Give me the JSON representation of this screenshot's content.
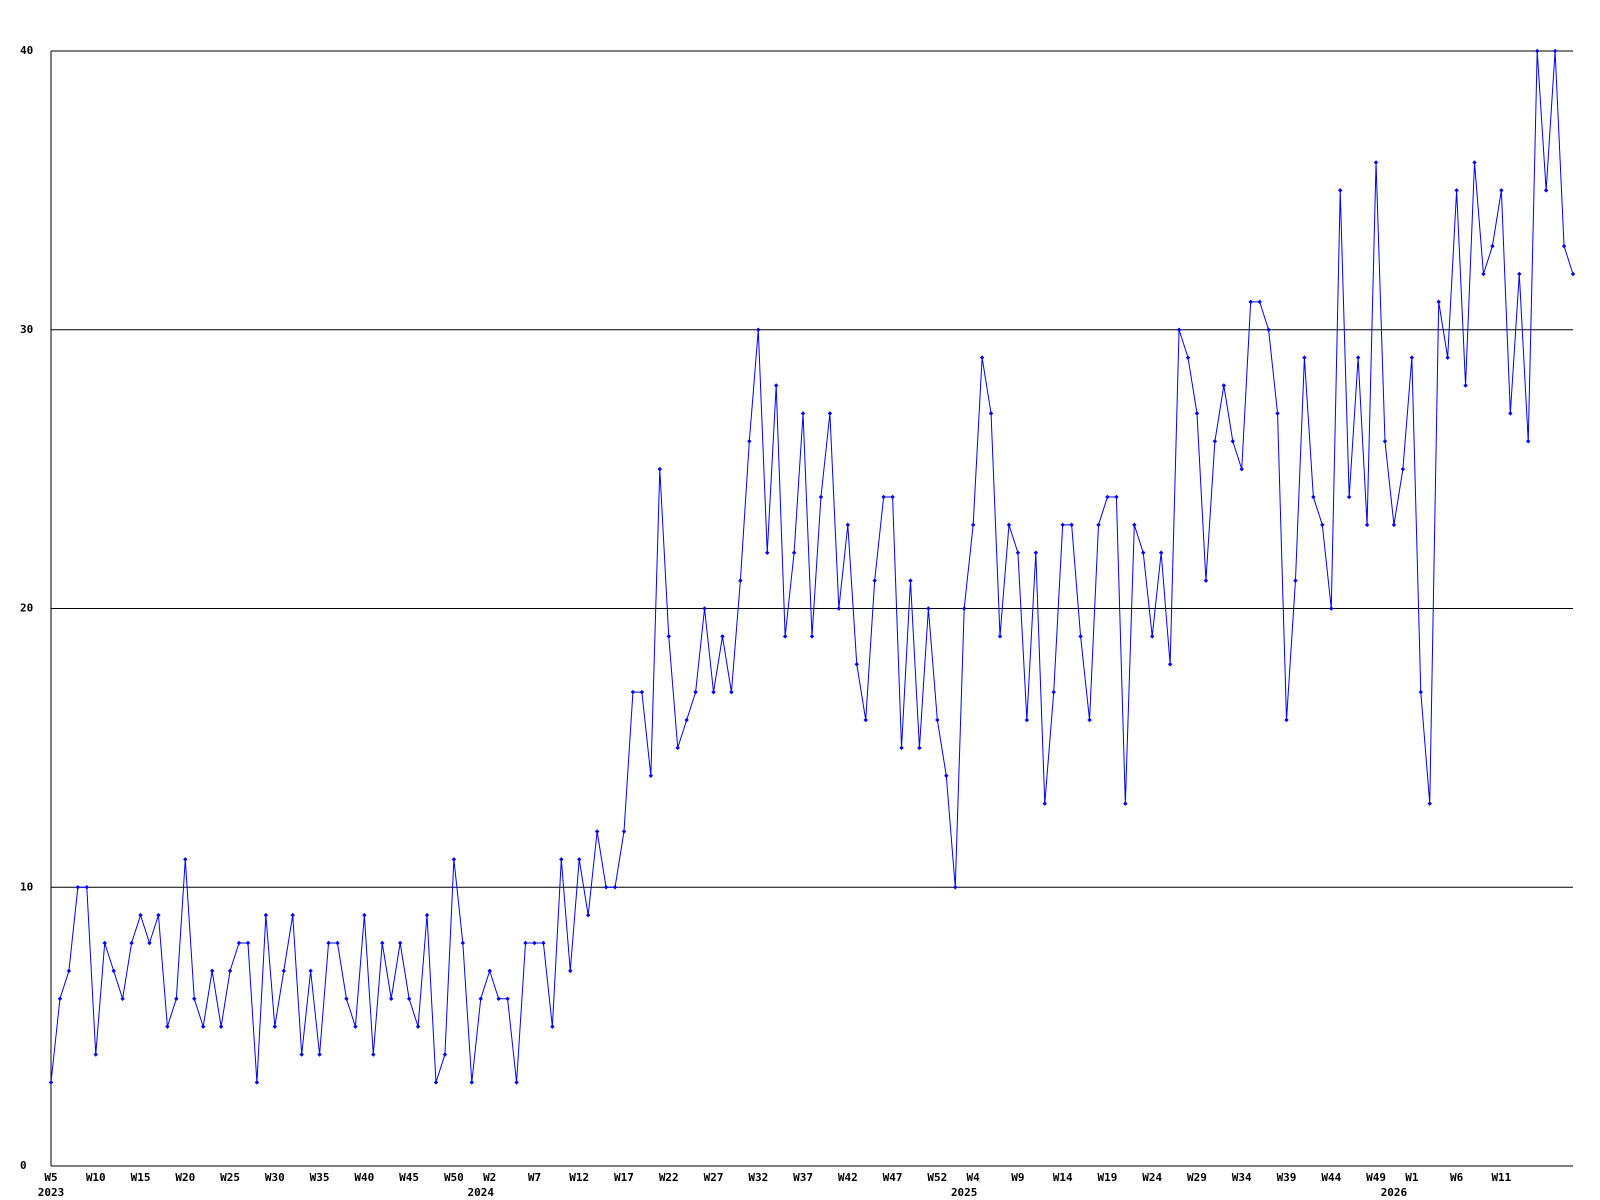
{
  "chart_data": {
    "type": "line",
    "categories": [
      "W5",
      null,
      null,
      null,
      null,
      "W10",
      null,
      null,
      null,
      null,
      "W15",
      null,
      null,
      null,
      null,
      "W20",
      null,
      null,
      null,
      null,
      "W25",
      null,
      null,
      null,
      null,
      "W30",
      null,
      null,
      null,
      null,
      "W35",
      null,
      null,
      null,
      null,
      "W40",
      null,
      null,
      null,
      null,
      "W45",
      null,
      null,
      null,
      null,
      "W50",
      null,
      null,
      null,
      "W2",
      null,
      null,
      null,
      null,
      "W7",
      null,
      null,
      null,
      null,
      "W12",
      null,
      null,
      null,
      null,
      "W17",
      null,
      null,
      null,
      null,
      "W22",
      null,
      null,
      null,
      null,
      "W27",
      null,
      null,
      null,
      null,
      "W32",
      null,
      null,
      null,
      null,
      "W37",
      null,
      null,
      null,
      null,
      "W42",
      null,
      null,
      null,
      null,
      "W47",
      null,
      null,
      null,
      null,
      "W52",
      null,
      null,
      null,
      "W4",
      null,
      null,
      null,
      null,
      "W9",
      null,
      null,
      null,
      null,
      "W14",
      null,
      null,
      null,
      null,
      "W19",
      null,
      null,
      null,
      null,
      "W24",
      null,
      null,
      null,
      null,
      "W29",
      null,
      null,
      null,
      null,
      "W34",
      null,
      null,
      null,
      null,
      "W39",
      null,
      null,
      null,
      null,
      "W44",
      null,
      null,
      null,
      null,
      "W49",
      null,
      null,
      null,
      "W1",
      null,
      null,
      null,
      null,
      "W6",
      null,
      null,
      null,
      null,
      "W11",
      null,
      null,
      null,
      null,
      null,
      null,
      null,
      null
    ],
    "years": [
      "2023",
      null,
      null,
      null,
      null,
      null,
      null,
      null,
      null,
      null,
      null,
      null,
      null,
      null,
      null,
      null,
      null,
      null,
      null,
      null,
      null,
      null,
      null,
      null,
      null,
      null,
      null,
      null,
      null,
      null,
      null,
      null,
      null,
      null,
      null,
      null,
      null,
      null,
      null,
      null,
      null,
      null,
      null,
      null,
      null,
      null,
      null,
      null,
      "2024",
      null,
      null,
      null,
      null,
      null,
      null,
      null,
      null,
      null,
      null,
      null,
      null,
      null,
      null,
      null,
      null,
      null,
      null,
      null,
      null,
      null,
      null,
      null,
      null,
      null,
      null,
      null,
      null,
      null,
      null,
      null,
      null,
      null,
      null,
      null,
      null,
      null,
      null,
      null,
      null,
      null,
      null,
      null,
      null,
      null,
      null,
      null,
      null,
      null,
      null,
      null,
      null,
      null,
      "2025",
      null,
      null,
      null,
      null,
      null,
      null,
      null,
      null,
      null,
      null,
      null,
      null,
      null,
      null,
      null,
      null,
      null,
      null,
      null,
      null,
      null,
      null,
      null,
      null,
      null,
      null,
      null,
      null,
      null,
      null,
      null,
      null,
      null,
      null,
      null,
      null,
      null,
      null,
      null,
      null,
      null,
      null,
      null,
      null,
      null,
      null,
      null,
      "2026",
      null,
      null,
      null,
      null,
      null,
      null,
      null,
      null,
      null,
      null,
      null,
      null,
      null,
      null,
      null,
      null,
      null,
      null
    ],
    "values": [
      3,
      6,
      7,
      10,
      10,
      4,
      8,
      7,
      6,
      8,
      9,
      8,
      9,
      5,
      6,
      11,
      6,
      5,
      7,
      5,
      7,
      8,
      8,
      3,
      9,
      5,
      7,
      9,
      4,
      7,
      4,
      8,
      8,
      6,
      5,
      9,
      4,
      8,
      6,
      8,
      6,
      5,
      9,
      3,
      4,
      11,
      8,
      3,
      6,
      7,
      6,
      6,
      3,
      8,
      8,
      8,
      5,
      11,
      7,
      11,
      9,
      12,
      10,
      10,
      12,
      17,
      17,
      14,
      25,
      19,
      15,
      16,
      17,
      20,
      17,
      19,
      17,
      21,
      26,
      30,
      22,
      28,
      19,
      22,
      27,
      19,
      24,
      27,
      20,
      23,
      18,
      16,
      21,
      24,
      24,
      15,
      21,
      15,
      20,
      16,
      14,
      10,
      20,
      23,
      29,
      27,
      19,
      23,
      22,
      16,
      22,
      13,
      17,
      23,
      23,
      19,
      16,
      23,
      24,
      24,
      13,
      23,
      22,
      19,
      22,
      18,
      30,
      29,
      27,
      21,
      26,
      28,
      26,
      25,
      31,
      31,
      30,
      27,
      16,
      21,
      29,
      24,
      23,
      20,
      35,
      24,
      29,
      23,
      36,
      26,
      23,
      25,
      29,
      17,
      13,
      31,
      29,
      35,
      28,
      36,
      32,
      33,
      35,
      27,
      32,
      26,
      40,
      35,
      40,
      33,
      32
    ],
    "color": "#0000ff",
    "ylim": [
      0,
      40
    ],
    "yticks": [
      0,
      10,
      20,
      30,
      40
    ],
    "grid": true
  }
}
